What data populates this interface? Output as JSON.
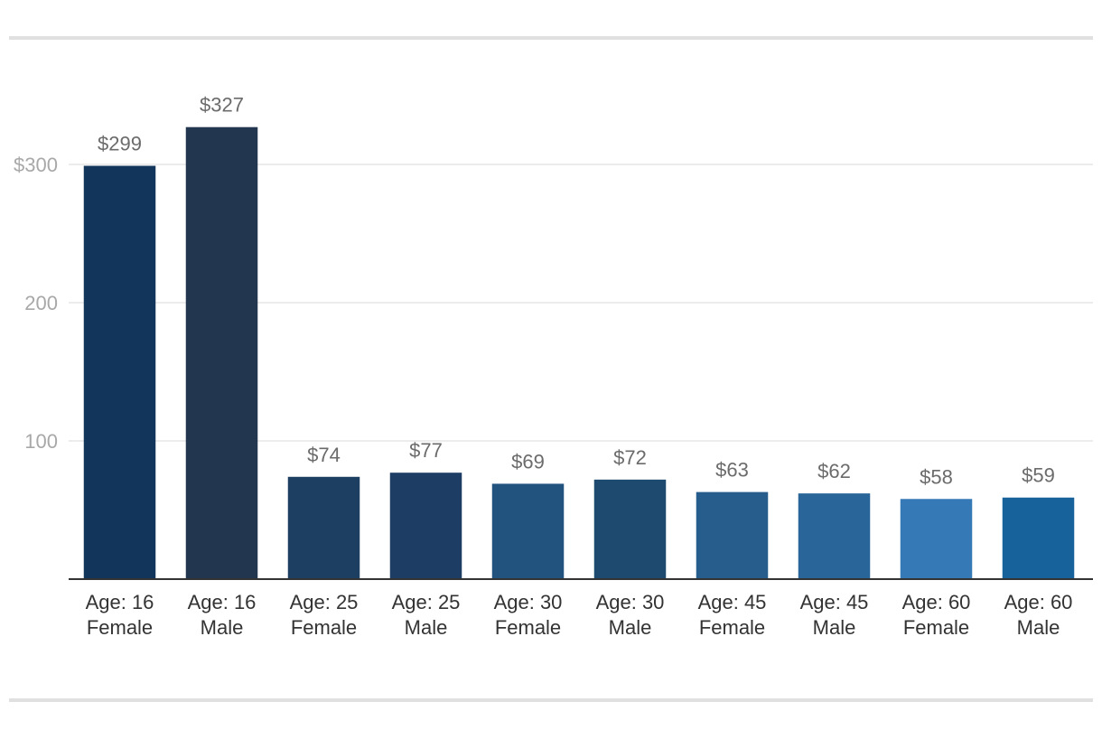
{
  "chart_data": {
    "type": "bar",
    "categories": [
      [
        "Age: 16",
        "Female"
      ],
      [
        "Age: 16",
        "Male"
      ],
      [
        "Age: 25",
        "Female"
      ],
      [
        "Age: 25",
        "Male"
      ],
      [
        "Age: 30",
        "Female"
      ],
      [
        "Age: 30",
        "Male"
      ],
      [
        "Age: 45",
        "Female"
      ],
      [
        "Age: 45",
        "Male"
      ],
      [
        "Age: 60",
        "Female"
      ],
      [
        "Age: 60",
        "Male"
      ]
    ],
    "values": [
      299,
      327,
      74,
      77,
      69,
      72,
      63,
      62,
      58,
      59
    ],
    "data_labels": [
      "$299",
      "$327",
      "$74",
      "$77",
      "$69",
      "$72",
      "$63",
      "$62",
      "$58",
      "$59"
    ],
    "bar_colors": [
      "#12355b",
      "#22364f",
      "#1d3f62",
      "#1e3d64",
      "#22527e",
      "#1f4a6f",
      "#275d8d",
      "#296598",
      "#3579b6",
      "#18629b"
    ],
    "y_ticks": [
      {
        "value": 100,
        "label": "100"
      },
      {
        "value": 200,
        "label": "200"
      },
      {
        "value": 300,
        "label": "$300"
      }
    ],
    "ylim": [
      0,
      350
    ],
    "grid": true,
    "title": "",
    "xlabel": "",
    "ylabel": ""
  },
  "colors": {
    "gridline": "#e6e6e6",
    "axis": "#333333",
    "rule": "#e0e0e0"
  }
}
